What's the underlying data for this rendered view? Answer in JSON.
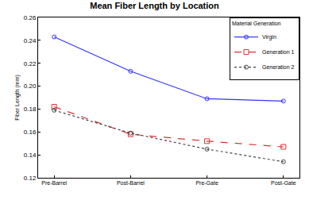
{
  "chart_data": {
    "type": "line",
    "title": "Mean Fiber Length by Location",
    "y_label": "Fiber Length (mm)",
    "categories": [
      "Pre-Barrel",
      "Post-Barrel",
      "Pre-Gate",
      "Post-Gate"
    ],
    "series": [
      {
        "name": "Virgin",
        "color": "#3333ff",
        "marker": "circle-open",
        "line_style": "solid",
        "values": [
          0.243,
          0.213,
          0.189,
          0.187
        ]
      },
      {
        "name": "Generation 1",
        "color": "#e03030",
        "marker": "square-open",
        "line_style": "dash",
        "values": [
          0.182,
          0.158,
          0.152,
          0.147
        ]
      },
      {
        "name": "Generation 2",
        "color": "#444444",
        "marker": "circle-open",
        "line_style": "dot",
        "values": [
          0.179,
          0.159,
          0.145,
          0.134
        ]
      }
    ],
    "legend_title": "Material Generation",
    "legend": "upper right",
    "ylim": [
      0.12,
      0.26
    ],
    "yticks": [
      0.12,
      0.14,
      0.16,
      0.18,
      {
        "value": 0.2,
        "label": "0.20"
      },
      0.22,
      0.24,
      0.26
    ],
    "grid": false
  }
}
